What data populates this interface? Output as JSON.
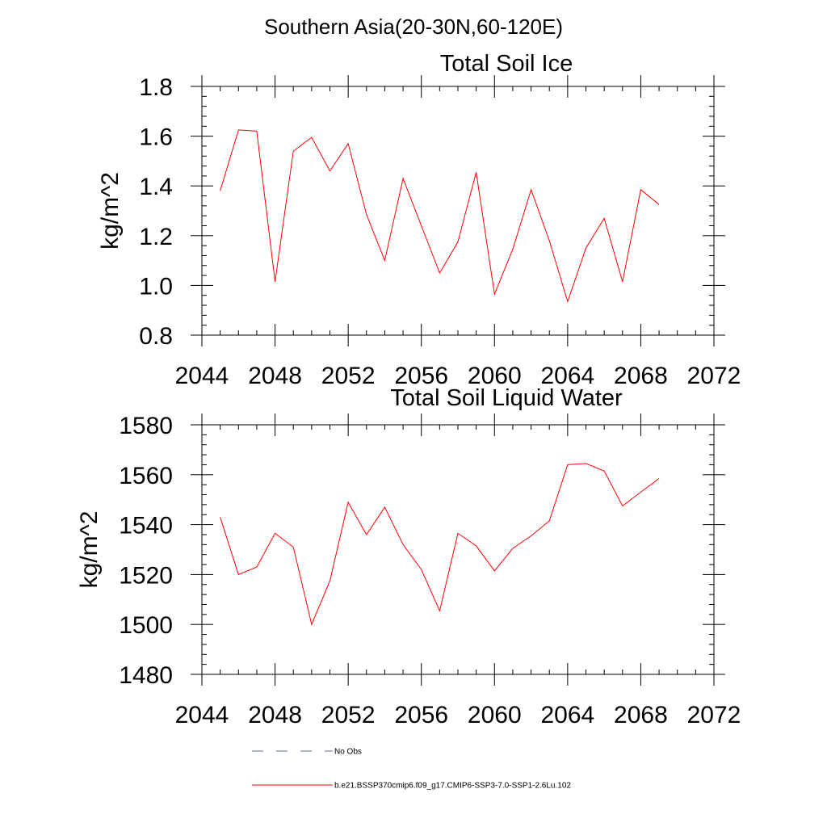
{
  "figure": {
    "suptitle": "Southern Asia(20-30N,60-120E)"
  },
  "chart_data": [
    {
      "type": "line",
      "title": "Total Soil Ice",
      "xlabel": "",
      "ylabel": "kg/m^2",
      "xlim": [
        2044,
        2072
      ],
      "ylim": [
        0.8,
        1.8
      ],
      "xticks": [
        2044,
        2048,
        2052,
        2056,
        2060,
        2064,
        2068,
        2072
      ],
      "yticks": [
        "0.8",
        "1.0",
        "1.2",
        "1.4",
        "1.6",
        "1.8"
      ],
      "grid": false,
      "series": [
        {
          "name": "b.e21.BSSP370cmip6.f09_g17.CMIP6-SSP3-7.0-SSP1-2.6Lu.102",
          "color": "#ff0000",
          "x": [
            2045,
            2046,
            2047,
            2048,
            2049,
            2050,
            2051,
            2052,
            2053,
            2054,
            2055,
            2056,
            2057,
            2058,
            2059,
            2060,
            2061,
            2062,
            2063,
            2064,
            2065,
            2066,
            2067,
            2068,
            2069
          ],
          "y": [
            1.38,
            1.625,
            1.62,
            1.015,
            1.54,
            1.595,
            1.46,
            1.57,
            1.285,
            1.1,
            1.43,
            1.24,
            1.05,
            1.175,
            1.455,
            0.965,
            1.145,
            1.385,
            1.18,
            0.935,
            1.15,
            1.27,
            1.015,
            1.385,
            1.325
          ]
        }
      ]
    },
    {
      "type": "line",
      "title": "Total Soil Liquid Water",
      "xlabel": "",
      "ylabel": "kg/m^2",
      "xlim": [
        2044,
        2072
      ],
      "ylim": [
        1480,
        1580
      ],
      "xticks": [
        2044,
        2048,
        2052,
        2056,
        2060,
        2064,
        2068,
        2072
      ],
      "yticks": [
        "1480",
        "1500",
        "1520",
        "1540",
        "1560",
        "1580"
      ],
      "grid": false,
      "series": [
        {
          "name": "b.e21.BSSP370cmip6.f09_g17.CMIP6-SSP3-7.0-SSP1-2.6Lu.102",
          "color": "#ff0000",
          "x": [
            2045,
            2046,
            2047,
            2048,
            2049,
            2050,
            2051,
            2052,
            2053,
            2054,
            2055,
            2056,
            2057,
            2058,
            2059,
            2060,
            2061,
            2062,
            2063,
            2064,
            2065,
            2066,
            2067,
            2068,
            2069
          ],
          "y": [
            1543,
            1520,
            1523,
            1536.5,
            1531,
            1500,
            1517.5,
            1549,
            1536,
            1547,
            1532,
            1522,
            1505.5,
            1536.5,
            1531.5,
            1521.5,
            1530.5,
            1535.5,
            1541.5,
            1564,
            1564.5,
            1561.5,
            1547.5,
            1553,
            1558.5
          ]
        }
      ]
    }
  ],
  "legend": {
    "placement": "bottom",
    "entries": [
      {
        "label": "No Obs",
        "color": "#5b6e9e",
        "style": "dashed"
      },
      {
        "label": "b.e21.BSSP370cmip6.f09_g17.CMIP6-SSP3-7.0-SSP1-2.6Lu.102",
        "color": "#ff0000",
        "style": "solid"
      }
    ]
  }
}
